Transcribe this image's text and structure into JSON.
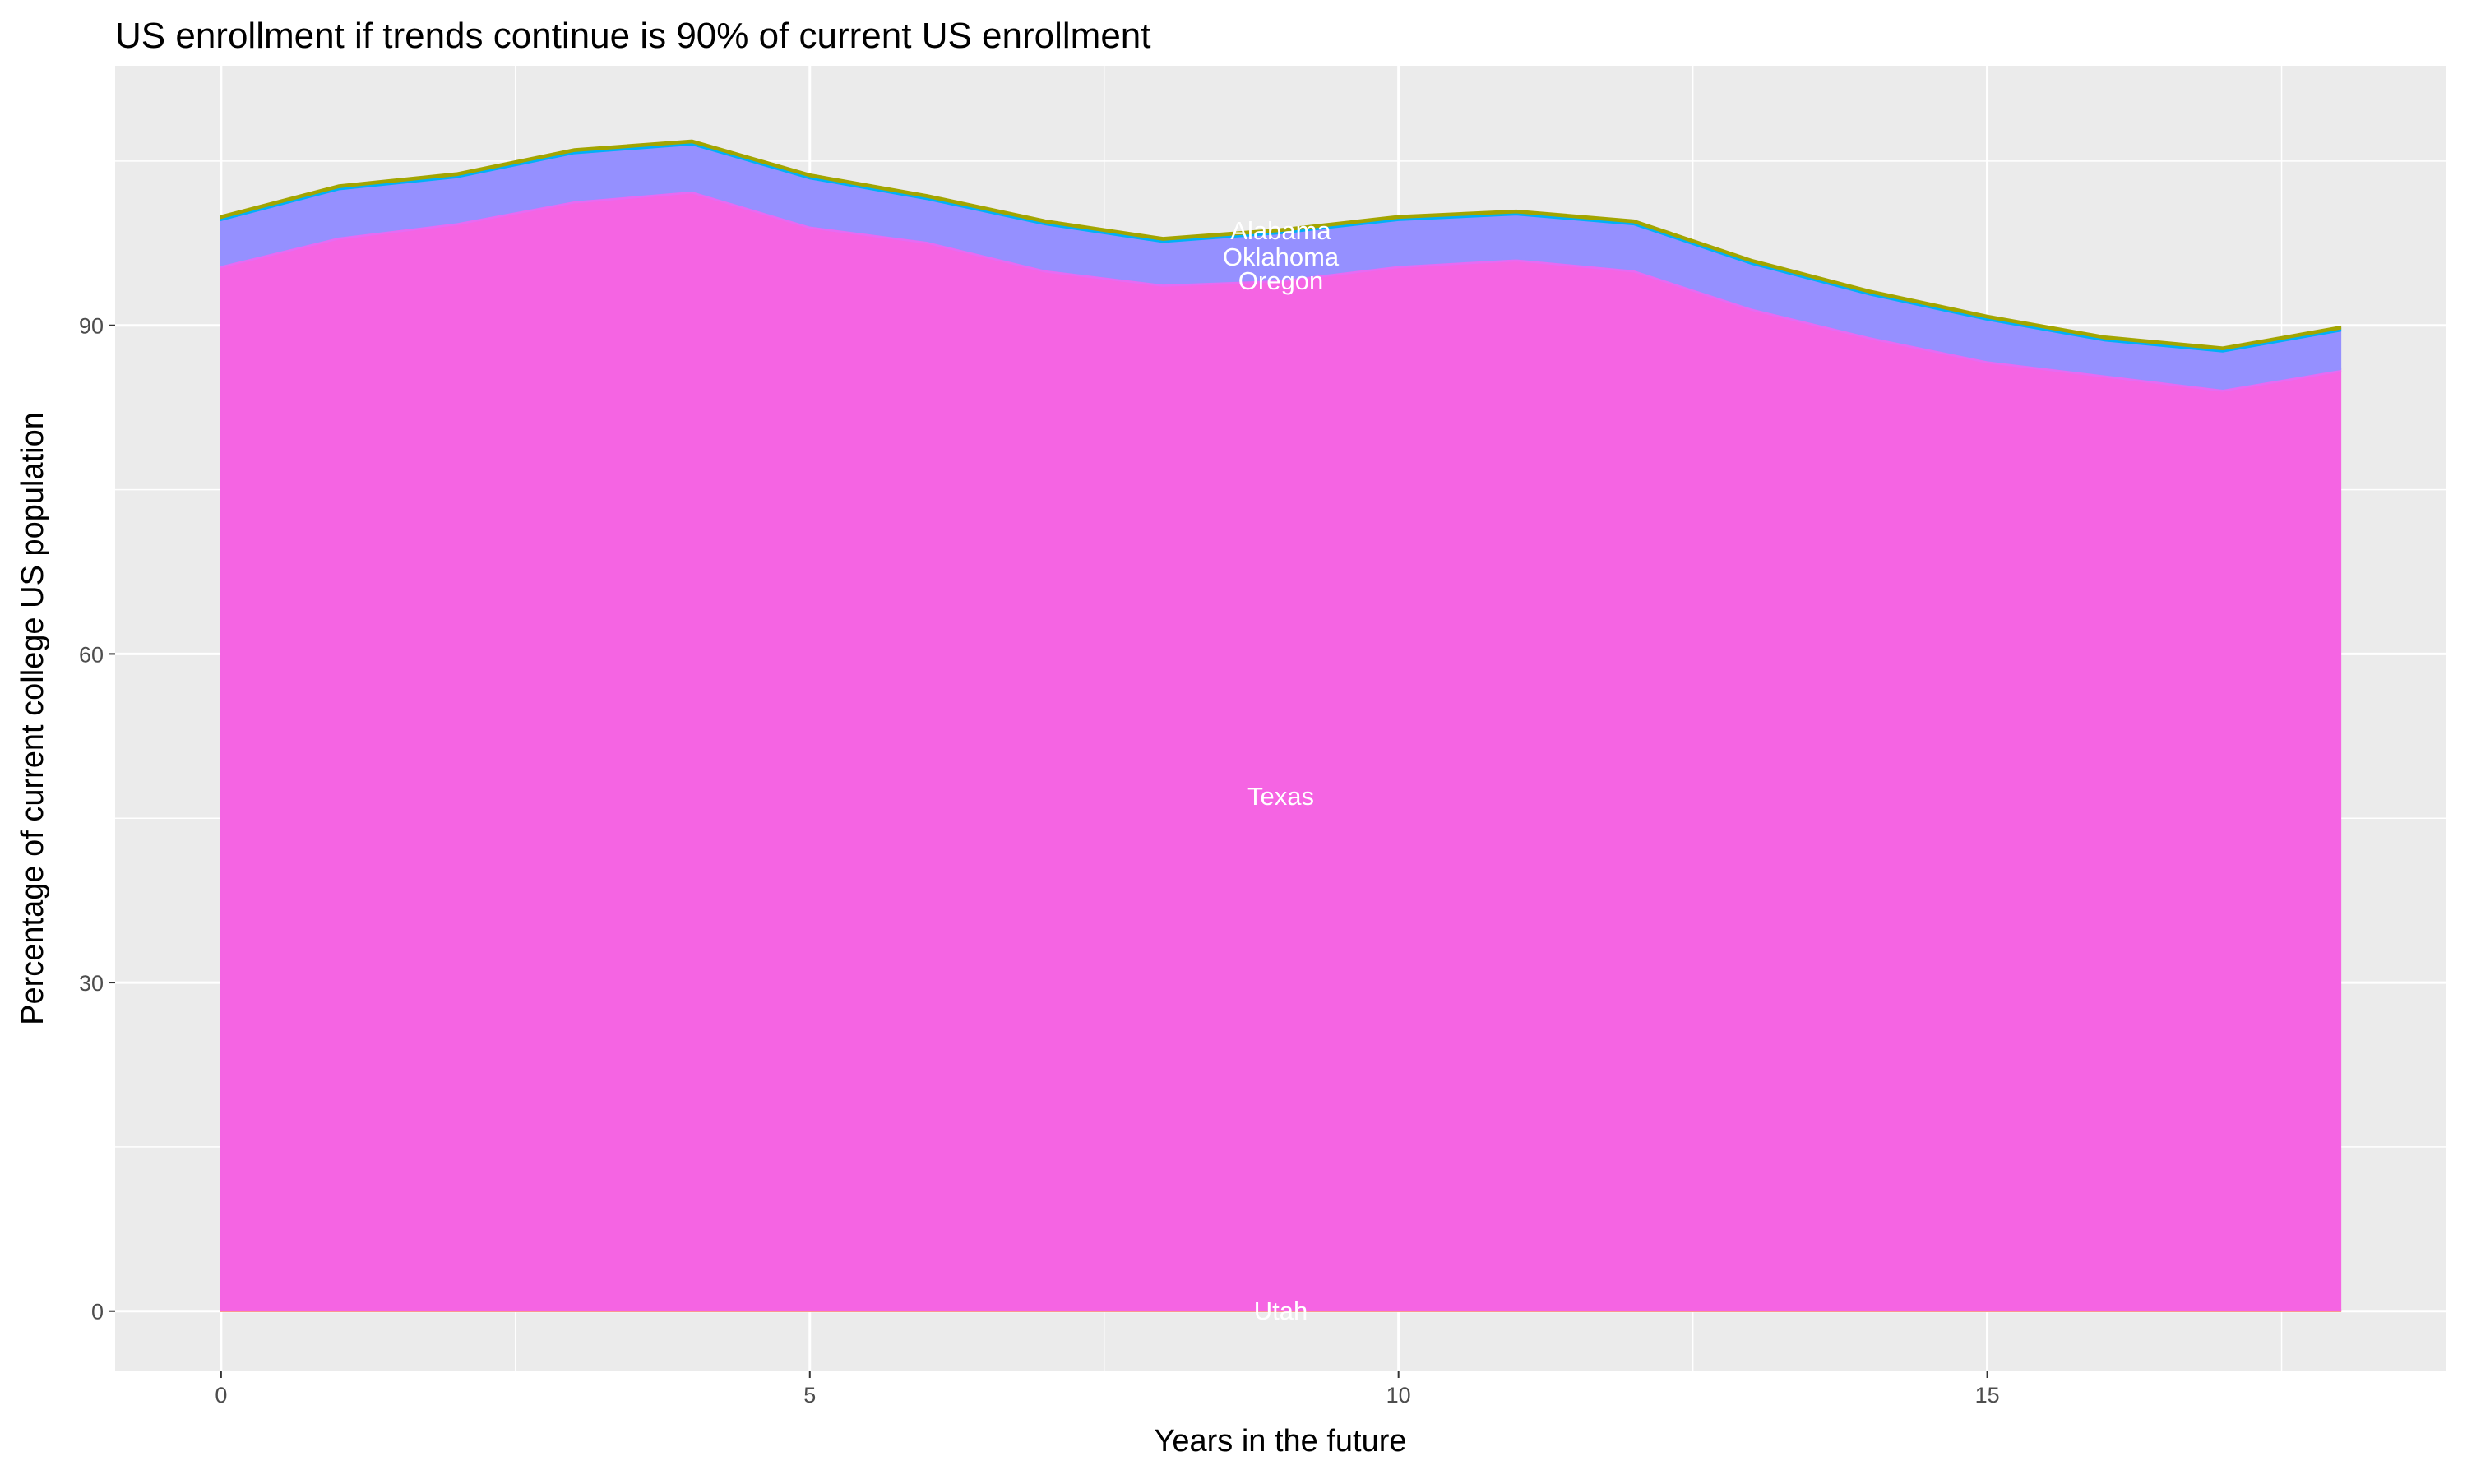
{
  "chart_data": {
    "type": "area",
    "stacked": true,
    "title": "US enrollment if trends continue is 90% of current US enrollment",
    "xlabel": "Years in the future",
    "ylabel": "Percentage of current college US population",
    "xlim": [
      -0.9,
      18.9
    ],
    "ylim": [
      -5.5,
      113.7
    ],
    "xticks": [
      0,
      5,
      10,
      15
    ],
    "yticks": [
      0,
      30,
      60,
      90
    ],
    "grid": true,
    "legend": "none (direct labels)",
    "label_x": 9,
    "x": [
      0,
      1,
      2,
      3,
      4,
      5,
      6,
      7,
      8,
      9,
      10,
      11,
      12,
      13,
      14,
      15,
      16,
      17,
      18
    ],
    "series": [
      {
        "name": "Utah",
        "color": "#F8766D",
        "values": [
          0.1,
          0.1,
          0.1,
          0.1,
          0.1,
          0.1,
          0.1,
          0.1,
          0.1,
          0.1,
          0.1,
          0.1,
          0.1,
          0.1,
          0.1,
          0.1,
          0.1,
          0.1,
          0.1
        ]
      },
      {
        "name": "Texas",
        "color": "#F564E3",
        "values": [
          95.2,
          97.8,
          99.1,
          101.1,
          102.0,
          98.8,
          97.4,
          94.8,
          93.5,
          93.9,
          95.2,
          95.8,
          94.8,
          91.3,
          88.7,
          86.5,
          85.2,
          83.9,
          85.7
        ]
      },
      {
        "name": "Oregon",
        "color": "#E76BF3",
        "values": [
          0.2,
          0.2,
          0.2,
          0.2,
          0.2,
          0.2,
          0.2,
          0.2,
          0.2,
          0.2,
          0.2,
          0.2,
          0.2,
          0.2,
          0.2,
          0.2,
          0.2,
          0.2,
          0.2
        ]
      },
      {
        "name": "Oklahoma",
        "color": "#9590FF",
        "values": [
          4.1,
          4.3,
          4.1,
          4.3,
          4.2,
          4.3,
          3.8,
          4.1,
          3.8,
          4.2,
          4.1,
          4.0,
          4.1,
          4.0,
          3.8,
          3.7,
          3.1,
          3.4,
          3.5
        ]
      },
      {
        "color": "#00B0F6",
        "values": [
          0.2,
          0.2,
          0.2,
          0.2,
          0.2,
          0.2,
          0.2,
          0.2,
          0.2,
          0.2,
          0.2,
          0.2,
          0.2,
          0.2,
          0.2,
          0.2,
          0.2,
          0.2,
          0.2
        ]
      },
      {
        "name": "Alabama",
        "color": "#A3A500",
        "values": [
          0.2,
          0.2,
          0.2,
          0.2,
          0.2,
          0.2,
          0.2,
          0.2,
          0.2,
          0.2,
          0.2,
          0.2,
          0.2,
          0.2,
          0.2,
          0.2,
          0.2,
          0.2,
          0.2
        ]
      }
    ],
    "panel_background": "#EBEBEB",
    "label_color": "#FFFFFF"
  }
}
